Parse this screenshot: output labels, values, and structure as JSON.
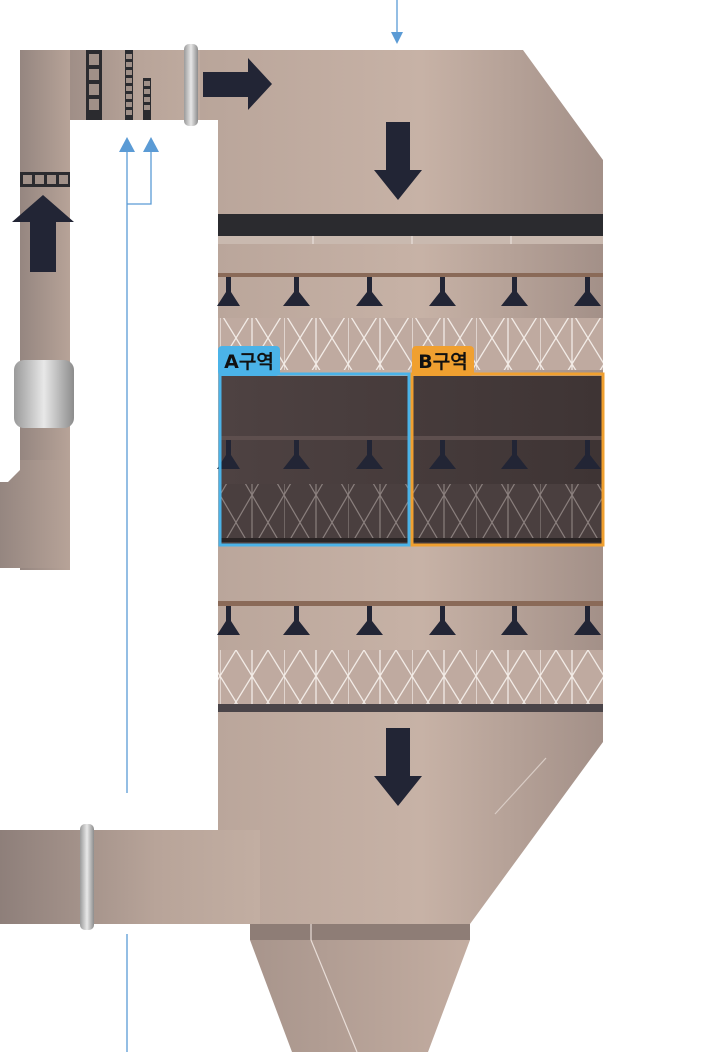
{
  "zones": [
    {
      "id": "A",
      "label": "A구역",
      "color": "#4bb3e8"
    },
    {
      "id": "B",
      "label": "B구역",
      "color": "#f0a030"
    }
  ],
  "colors": {
    "body": "#c0aa9f",
    "body_dark": "#a08e86",
    "arrow": "#222535",
    "dark_panel": "#4a3c3c",
    "pipe_line": "#5b9bd5",
    "coupling": "#b8b8b8"
  },
  "icons": [
    "down-arrow-icon",
    "right-arrow-icon",
    "up-arrow-icon",
    "nozzle-icon"
  ]
}
